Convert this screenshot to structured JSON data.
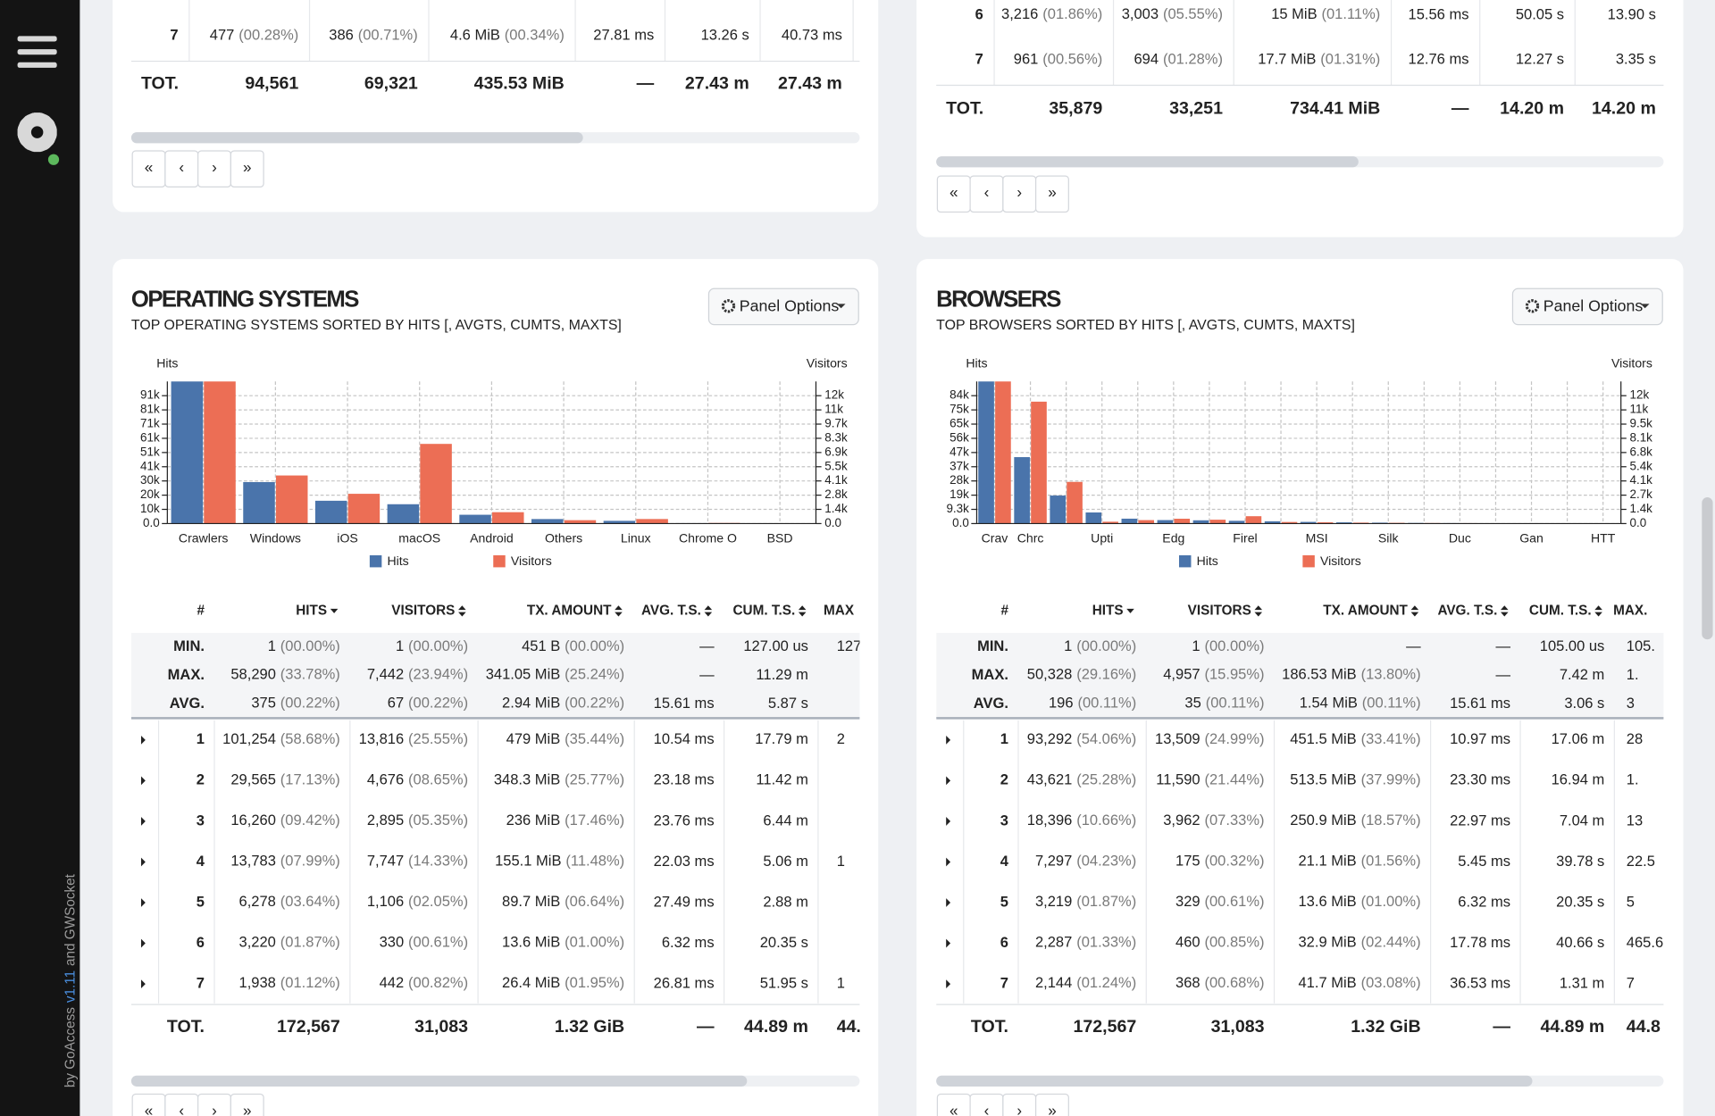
{
  "sidebar": {
    "credit": [
      "by GoAccess",
      "v1.11",
      "and GWSocket"
    ]
  },
  "pager": [
    "«",
    "‹",
    "›",
    "»"
  ],
  "top_panels": [
    {
      "rows": [
        [
          "7",
          [
            "477",
            "(00.28%)"
          ],
          [
            "386",
            "(00.71%)"
          ],
          [
            "4.6 MiB",
            "(00.34%)"
          ],
          "27.81 ms",
          "13.26 s",
          "40.73 ms"
        ]
      ],
      "total": [
        "TOT.",
        "94,561",
        "69,321",
        "435.53 MiB",
        "—",
        "27.43 m",
        "27.43 m"
      ]
    },
    {
      "rows": [
        [
          "6",
          [
            "3,216",
            "(01.86%)"
          ],
          [
            "3,003",
            "(05.55%)"
          ],
          [
            "15 MiB",
            "(01.11%)"
          ],
          "15.56 ms",
          "50.05 s",
          "13.90 s"
        ],
        [
          "7",
          [
            "961",
            "(00.56%)"
          ],
          [
            "694",
            "(01.28%)"
          ],
          [
            "17.7 MiB",
            "(01.31%)"
          ],
          "12.76 ms",
          "12.27 s",
          "3.35 s"
        ]
      ],
      "total": [
        "TOT.",
        "35,879",
        "33,251",
        "734.41 MiB",
        "—",
        "14.20 m",
        "14.20 m"
      ]
    }
  ],
  "panels": [
    {
      "title": "OPERATING SYSTEMS",
      "subtitle": "TOP OPERATING SYSTEMS SORTED BY HITS [, AVGTS, CUMTS, MAXTS]",
      "options": "Panel Options",
      "chart": {
        "type": "bar",
        "y_label": "Hits",
        "y2_label": "Visitors",
        "categories": [
          "Crawlers",
          "Windows",
          "iOS",
          "macOS",
          "Android",
          "Others",
          "Linux",
          "Chrome O",
          "BSD"
        ],
        "series": [
          {
            "name": "Hits",
            "color": "#4a74ab",
            "values": [
              101254,
              29565,
              16260,
              13783,
              6278,
              3220,
              1938,
              300,
              50
            ]
          },
          {
            "name": "Visitors",
            "color": "#ec6e55",
            "axis": "y2",
            "values": [
              13816,
              4676,
              2895,
              7747,
              1106,
              330,
              442,
              60,
              10
            ]
          }
        ],
        "ylim": [
          0,
          101254
        ],
        "yticks": [
          {
            "value": 0,
            "label": "0.0"
          },
          {
            "value": 10125,
            "label": "10k"
          },
          {
            "value": 20251,
            "label": "20k"
          },
          {
            "value": 30376,
            "label": "30k"
          },
          {
            "value": 40502,
            "label": "41k"
          },
          {
            "value": 50627,
            "label": "51k"
          },
          {
            "value": 60752,
            "label": "61k"
          },
          {
            "value": 70878,
            "label": "71k"
          },
          {
            "value": 81003,
            "label": "81k"
          },
          {
            "value": 91129,
            "label": "91k"
          }
        ],
        "y2lim": [
          0,
          13816
        ],
        "y2ticks": [
          {
            "value": 0,
            "label": "0.0"
          },
          {
            "value": 1382,
            "label": "1.4k"
          },
          {
            "value": 2763,
            "label": "2.8k"
          },
          {
            "value": 4145,
            "label": "4.1k"
          },
          {
            "value": 5526,
            "label": "5.5k"
          },
          {
            "value": 6908,
            "label": "6.9k"
          },
          {
            "value": 8290,
            "label": "8.3k"
          },
          {
            "value": 9671,
            "label": "9.7k"
          },
          {
            "value": 11053,
            "label": "11k"
          },
          {
            "value": 12434,
            "label": "12k"
          }
        ],
        "grid": true
      },
      "table": {
        "headers": [
          "#",
          "HITS",
          "VISITORS",
          "TX. AMOUNT",
          "AVG. T.S.",
          "CUM. T.S.",
          "MAX"
        ],
        "summary": [
          [
            "MIN.",
            [
              "1",
              "(00.00%)"
            ],
            [
              "1",
              "(00.00%)"
            ],
            [
              "451 B",
              "(00.00%)"
            ],
            "—",
            "127.00 us",
            "127"
          ],
          [
            "MAX.",
            [
              "58,290",
              "(33.78%)"
            ],
            [
              "7,442",
              "(23.94%)"
            ],
            [
              "341.05 MiB",
              "(25.24%)"
            ],
            "—",
            "11.29 m"
          ],
          [
            "AVG.",
            [
              "375",
              "(00.22%)"
            ],
            [
              "67",
              "(00.22%)"
            ],
            [
              "2.94 MiB",
              "(00.22%)"
            ],
            "15.61 ms",
            "5.87 s"
          ]
        ],
        "rows": [
          [
            "1",
            [
              "101,254",
              "(58.68%)"
            ],
            [
              "13,816",
              "(25.55%)"
            ],
            [
              "479 MiB",
              "(35.44%)"
            ],
            "10.54 ms",
            "17.79 m",
            "2"
          ],
          [
            "2",
            [
              "29,565",
              "(17.13%)"
            ],
            [
              "4,676",
              "(08.65%)"
            ],
            [
              "348.3 MiB",
              "(25.77%)"
            ],
            "23.18 ms",
            "11.42 m"
          ],
          [
            "3",
            [
              "16,260",
              "(09.42%)"
            ],
            [
              "2,895",
              "(05.35%)"
            ],
            [
              "236 MiB",
              "(17.46%)"
            ],
            "23.76 ms",
            "6.44 m"
          ],
          [
            "4",
            [
              "13,783",
              "(07.99%)"
            ],
            [
              "7,747",
              "(14.33%)"
            ],
            [
              "155.1 MiB",
              "(11.48%)"
            ],
            "22.03 ms",
            "5.06 m",
            "1"
          ],
          [
            "5",
            [
              "6,278",
              "(03.64%)"
            ],
            [
              "1,106",
              "(02.05%)"
            ],
            [
              "89.7 MiB",
              "(06.64%)"
            ],
            "27.49 ms",
            "2.88 m"
          ],
          [
            "6",
            [
              "3,220",
              "(01.87%)"
            ],
            [
              "330",
              "(00.61%)"
            ],
            [
              "13.6 MiB",
              "(01.00%)"
            ],
            "6.32 ms",
            "20.35 s"
          ],
          [
            "7",
            [
              "1,938",
              "(01.12%)"
            ],
            [
              "442",
              "(00.82%)"
            ],
            [
              "26.4 MiB",
              "(01.95%)"
            ],
            "26.81 ms",
            "51.95 s",
            "1"
          ]
        ],
        "total": [
          "TOT.",
          "172,567",
          "31,083",
          "1.32 GiB",
          "—",
          "44.89 m",
          "44."
        ]
      }
    },
    {
      "title": "BROWSERS",
      "subtitle": "TOP BROWSERS SORTED BY HITS [, AVGTS, CUMTS, MAXTS]",
      "options": "Panel Options",
      "chart": {
        "type": "bar",
        "y_label": "Hits",
        "y2_label": "Visitors",
        "categories": [
          "Crav",
          "Chrc",
          null,
          "Upti",
          null,
          "Edg",
          null,
          "Firel",
          null,
          "MSI",
          null,
          "Silk",
          null,
          "Duc",
          null,
          "Gan",
          null,
          "HTT"
        ],
        "series": [
          {
            "name": "Hits",
            "color": "#4a74ab",
            "values": [
              93292,
              43621,
              18396,
              7297,
              3219,
              2287,
              2144,
              1800,
              1500,
              1100,
              800,
              600,
              400,
              300,
              200,
              150,
              100,
              60
            ]
          },
          {
            "name": "Visitors",
            "color": "#ec6e55",
            "axis": "y2",
            "values": [
              13509,
              11590,
              3962,
              175,
              329,
              460,
              368,
              700,
              150,
              120,
              90,
              70,
              50,
              40,
              30,
              20,
              15,
              10
            ]
          }
        ],
        "ylim": [
          0,
          93292
        ],
        "yticks": [
          {
            "value": 0,
            "label": "0.0"
          },
          {
            "value": 9329,
            "label": "9.3k"
          },
          {
            "value": 18658,
            "label": "19k"
          },
          {
            "value": 27988,
            "label": "28k"
          },
          {
            "value": 37317,
            "label": "37k"
          },
          {
            "value": 46646,
            "label": "47k"
          },
          {
            "value": 55975,
            "label": "56k"
          },
          {
            "value": 65304,
            "label": "65k"
          },
          {
            "value": 74634,
            "label": "75k"
          },
          {
            "value": 83963,
            "label": "84k"
          }
        ],
        "y2lim": [
          0,
          13509
        ],
        "y2ticks": [
          {
            "value": 0,
            "label": "0.0"
          },
          {
            "value": 1351,
            "label": "1.4k"
          },
          {
            "value": 2702,
            "label": "2.7k"
          },
          {
            "value": 4053,
            "label": "4.1k"
          },
          {
            "value": 5404,
            "label": "5.4k"
          },
          {
            "value": 6755,
            "label": "6.8k"
          },
          {
            "value": 8105,
            "label": "8.1k"
          },
          {
            "value": 9456,
            "label": "9.5k"
          },
          {
            "value": 10807,
            "label": "11k"
          },
          {
            "value": 12158,
            "label": "12k"
          }
        ],
        "grid": true
      },
      "table": {
        "headers": [
          "#",
          "HITS",
          "VISITORS",
          "TX. AMOUNT",
          "AVG. T.S.",
          "CUM. T.S.",
          "MAX."
        ],
        "summary": [
          [
            "MIN.",
            [
              "1",
              "(00.00%)"
            ],
            [
              "1",
              "(00.00%)"
            ],
            "—",
            "—",
            "105.00 us",
            "105."
          ],
          [
            "MAX.",
            [
              "50,328",
              "(29.16%)"
            ],
            [
              "4,957",
              "(15.95%)"
            ],
            [
              "186.53 MiB",
              "(13.80%)"
            ],
            "—",
            "7.42 m",
            "1."
          ],
          [
            "AVG.",
            [
              "196",
              "(00.11%)"
            ],
            [
              "35",
              "(00.11%)"
            ],
            [
              "1.54 MiB",
              "(00.11%)"
            ],
            "15.61 ms",
            "3.06 s",
            "3"
          ]
        ],
        "rows": [
          [
            "1",
            [
              "93,292",
              "(54.06%)"
            ],
            [
              "13,509",
              "(24.99%)"
            ],
            [
              "451.5 MiB",
              "(33.41%)"
            ],
            "10.97 ms",
            "17.06 m",
            "28"
          ],
          [
            "2",
            [
              "43,621",
              "(25.28%)"
            ],
            [
              "11,590",
              "(21.44%)"
            ],
            [
              "513.5 MiB",
              "(37.99%)"
            ],
            "23.30 ms",
            "16.94 m",
            "1."
          ],
          [
            "3",
            [
              "18,396",
              "(10.66%)"
            ],
            [
              "3,962",
              "(07.33%)"
            ],
            [
              "250.9 MiB",
              "(18.57%)"
            ],
            "22.97 ms",
            "7.04 m",
            "13"
          ],
          [
            "4",
            [
              "7,297",
              "(04.23%)"
            ],
            [
              "175",
              "(00.32%)"
            ],
            [
              "21.1 MiB",
              "(01.56%)"
            ],
            "5.45 ms",
            "39.78 s",
            "22.5"
          ],
          [
            "5",
            [
              "3,219",
              "(01.87%)"
            ],
            [
              "329",
              "(00.61%)"
            ],
            [
              "13.6 MiB",
              "(01.00%)"
            ],
            "6.32 ms",
            "20.35 s",
            "5"
          ],
          [
            "6",
            [
              "2,287",
              "(01.33%)"
            ],
            [
              "460",
              "(00.85%)"
            ],
            [
              "32.9 MiB",
              "(02.44%)"
            ],
            "17.78 ms",
            "40.66 s",
            "465.6"
          ],
          [
            "7",
            [
              "2,144",
              "(01.24%)"
            ],
            [
              "368",
              "(00.68%)"
            ],
            [
              "41.7 MiB",
              "(03.08%)"
            ],
            "36.53 ms",
            "1.31 m",
            "7"
          ]
        ],
        "total": [
          "TOT.",
          "172,567",
          "31,083",
          "1.32 GiB",
          "—",
          "44.89 m",
          "44.8"
        ]
      }
    }
  ]
}
